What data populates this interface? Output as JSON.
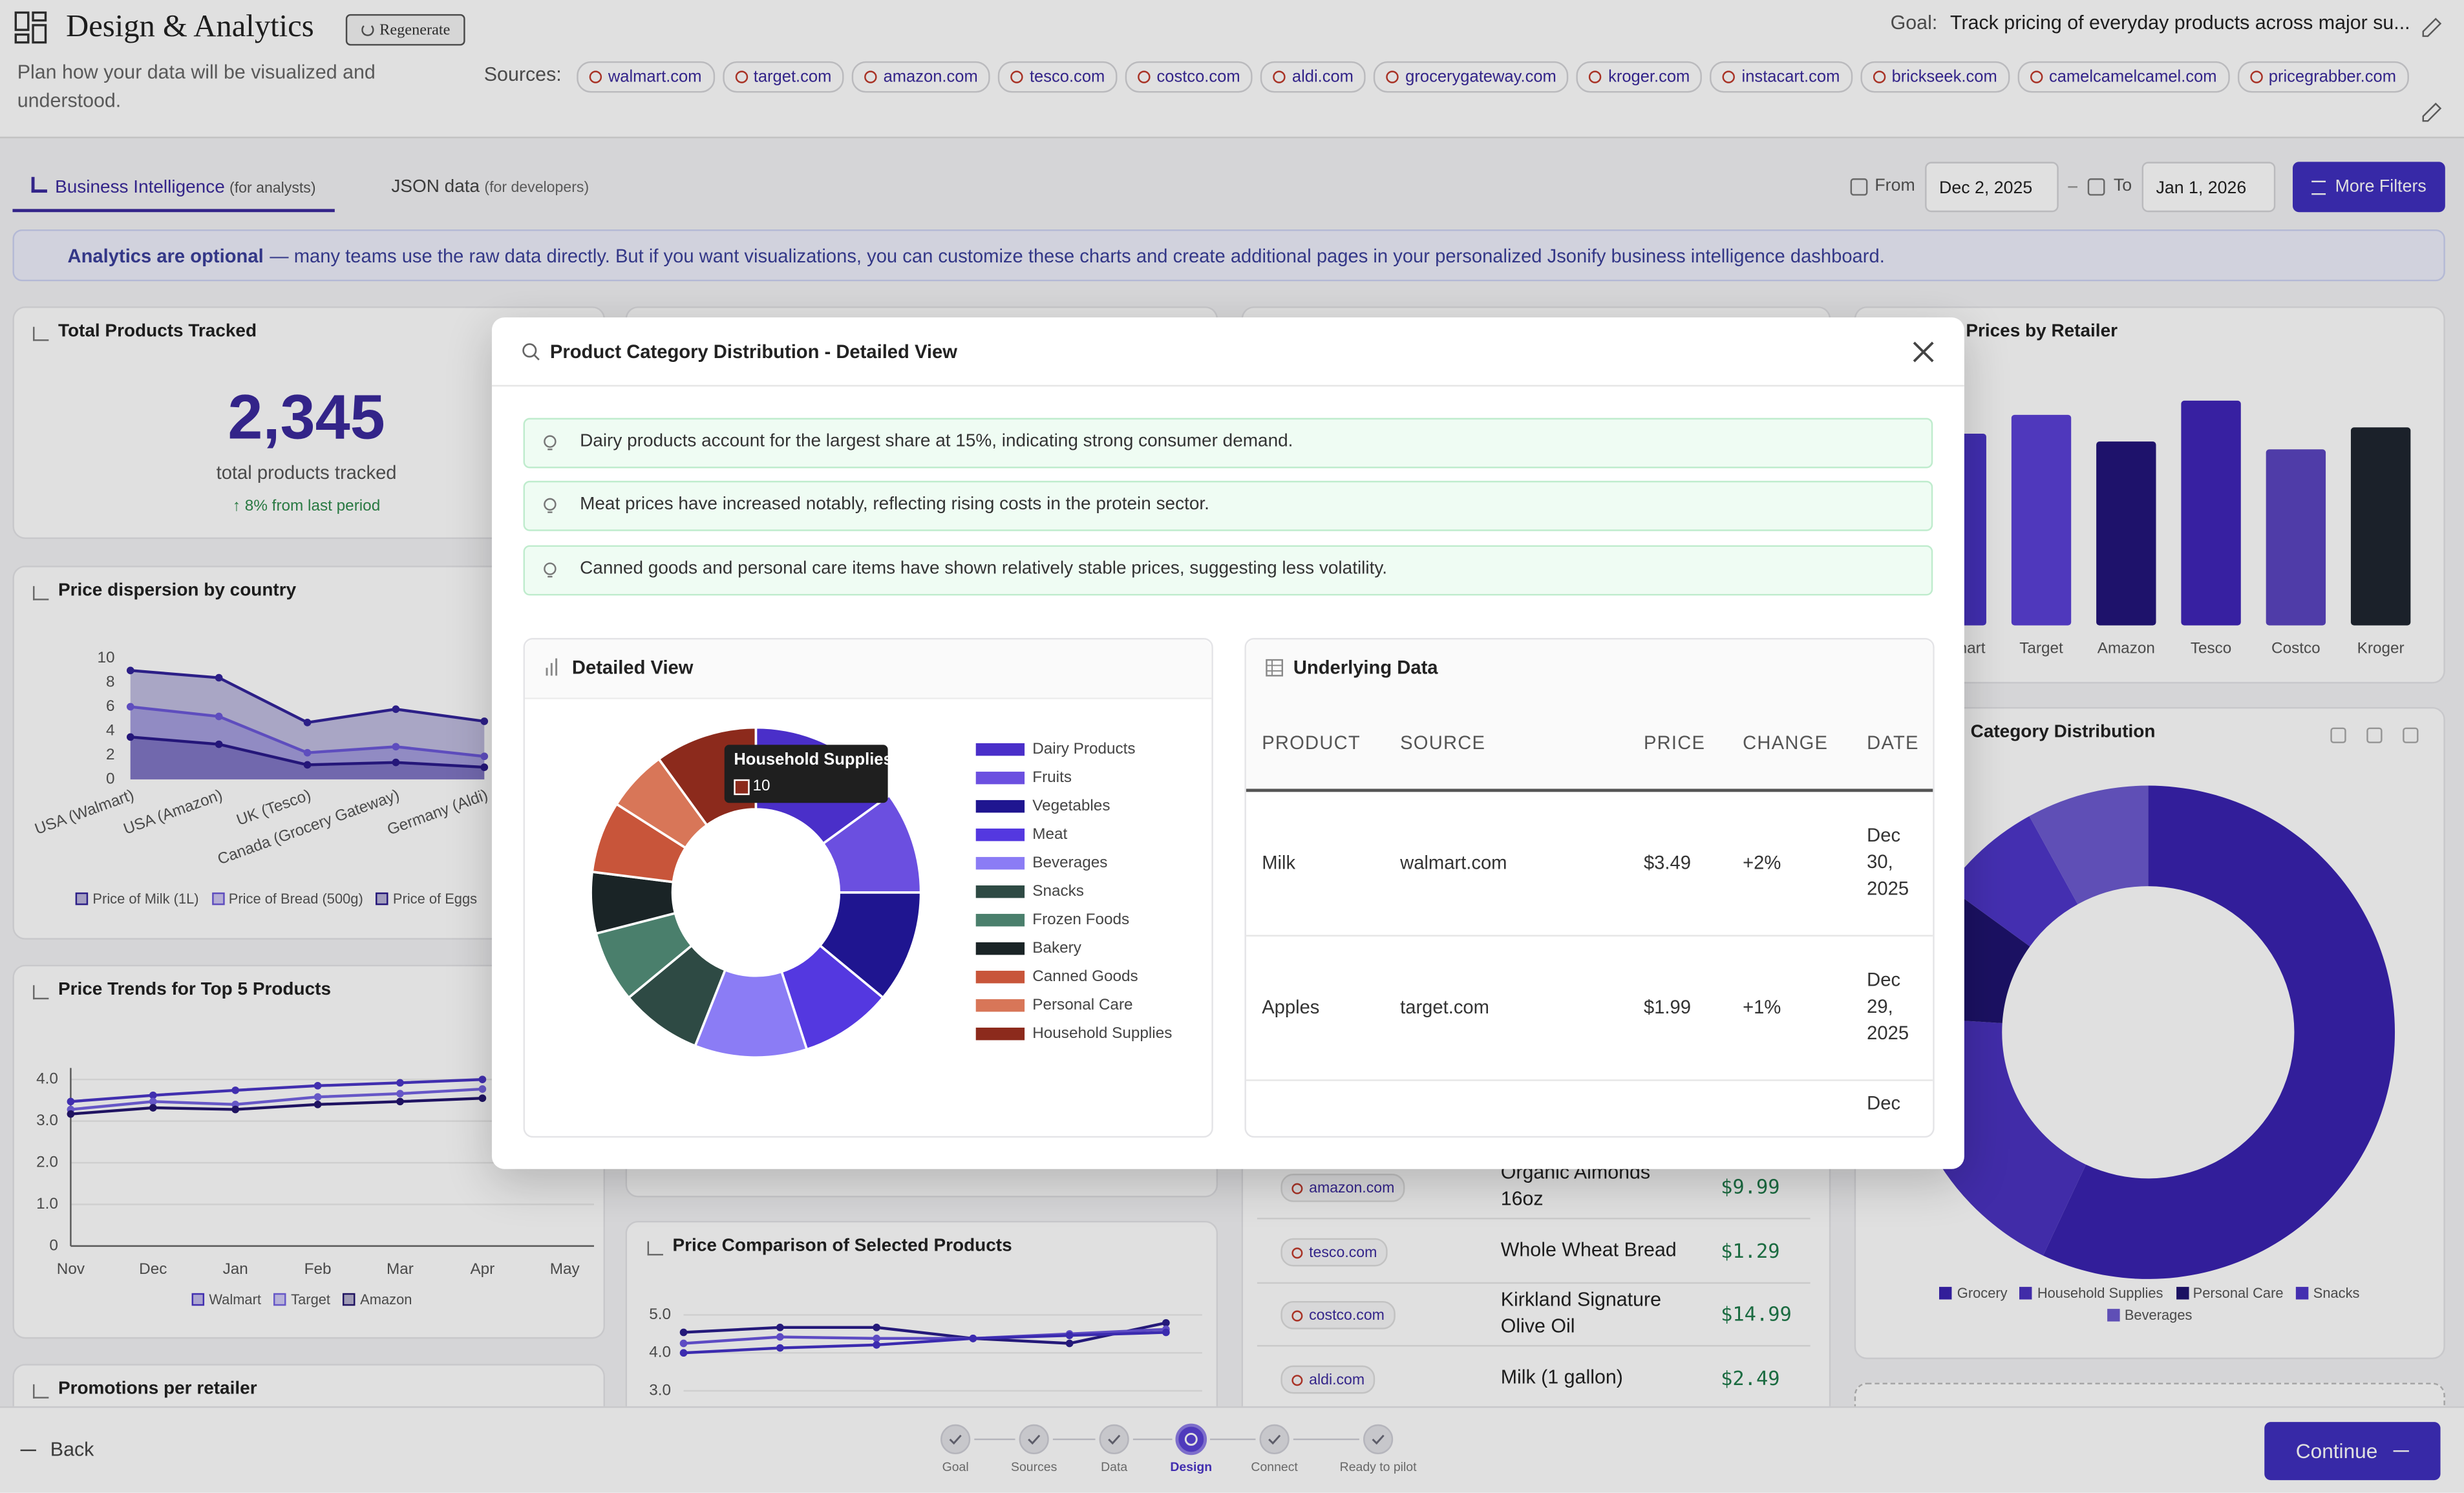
{
  "header": {
    "title": "Design & Analytics",
    "regenerate": "Regenerate",
    "subtitle": "Plan how your data will be visualized and understood.",
    "goal_label": "Goal:",
    "goal": "Track pricing of everyday products across major su...",
    "sources_label": "Sources:",
    "sources": [
      "walmart.com",
      "target.com",
      "amazon.com",
      "tesco.com",
      "costco.com",
      "aldi.com",
      "grocerygateway.com",
      "kroger.com",
      "instacart.com",
      "brickseek.com",
      "camelcamelcamel.com",
      "pricegrabber.com"
    ]
  },
  "tabs": [
    {
      "label": "Business Intelligence",
      "note": "(for analysts)"
    },
    {
      "label": "JSON data",
      "note": "(for developers)"
    }
  ],
  "filters": {
    "from_label": "From",
    "from": "Dec 2, 2025",
    "to_label": "To",
    "to": "Jan 1, 2026",
    "more_filters": "More Filters"
  },
  "banner": {
    "lead": "Analytics are optional",
    "text": "— many teams use the raw data directly. But if you want visualizations, you can customize these charts and create additional pages in your personalized Jsonify business intelligence dashboard."
  },
  "cards": {
    "total_products": {
      "title": "Total Products Tracked",
      "value": "2,345",
      "caption": "total products tracked",
      "change": "↑ 8% from last period"
    },
    "price_dispersion": {
      "title": "Price dispersion by country",
      "chart": {
        "type": "area",
        "categories": [
          "USA (Walmart)",
          "USA (Amazon)",
          "UK (Tesco)",
          "Canada (Grocery Gateway)",
          "Germany (Aldi)"
        ],
        "series": [
          {
            "name": "Price of Milk (1L)",
            "color": "#33249a",
            "values": [
              9,
              8.4,
              4.7,
              5.8,
              4.8
            ]
          },
          {
            "name": "Price of Bread (500g)",
            "color": "#6b58d9",
            "values": [
              6,
              5.2,
              2.2,
              2.7,
              1.9
            ]
          },
          {
            "name": "Price of Eggs",
            "color": "#2a1a8a",
            "values": [
              3.5,
              2.9,
              1.2,
              1.4,
              1
            ]
          }
        ],
        "ylim": [
          0,
          10
        ],
        "yticks": [
          0,
          2,
          4,
          6,
          8,
          10
        ],
        "grid": false
      }
    },
    "price_trends": {
      "title": "Price Trends for Top 5 Products",
      "chart": {
        "type": "line",
        "categories": [
          "Nov",
          "Dec",
          "Jan",
          "Feb",
          "Mar",
          "Apr",
          "May"
        ],
        "series": [
          {
            "name": "Walmart",
            "color": "#4a36c8",
            "values": [
              3.47,
              3.62,
              3.74,
              3.85,
              3.92,
              4,
              null
            ]
          },
          {
            "name": "Target",
            "color": "#7563e3",
            "values": [
              3.28,
              3.47,
              3.4,
              3.58,
              3.66,
              3.77,
              null
            ]
          },
          {
            "name": "Amazon",
            "color": "#24166f",
            "values": [
              3.17,
              3.32,
              3.28,
              3.4,
              3.47,
              3.55,
              null
            ]
          }
        ],
        "ylim": [
          0,
          4.2
        ],
        "yticks": [
          0,
          {
            "value": 1,
            "label": "1.0"
          },
          {
            "value": 2,
            "label": "2.0"
          },
          {
            "value": 3,
            "label": "3.0"
          },
          {
            "value": 4,
            "label": "4.0"
          }
        ],
        "grid": true
      }
    },
    "promotions": {
      "title": "Promotions per retailer"
    },
    "price_comparison": {
      "title": "Price Comparison of Selected Products",
      "chart": {
        "type": "line",
        "categories": [
          null,
          null,
          null,
          null,
          null,
          null
        ],
        "series": [
          {
            "color": "#2a1d8a",
            "values": [
              4.54,
              4.67,
              4.67,
              4.38,
              4.25,
              4.79
            ]
          },
          {
            "color": "#6a56de",
            "values": [
              4.25,
              4.42,
              4.38,
              4.38,
              4.5,
              4.62
            ]
          },
          {
            "color": "#4431c8",
            "values": [
              4,
              4.13,
              4.21,
              4.38,
              4.46,
              4.54
            ]
          }
        ],
        "ylim": [
          2.8,
          5.2
        ],
        "yticks": [
          {
            "value": 3,
            "label": "3.0"
          },
          {
            "value": 4,
            "label": "4.0"
          },
          {
            "value": 5,
            "label": "5.0"
          }
        ],
        "grid": true
      }
    },
    "listings": {
      "rows": [
        {
          "source": "amazon.com",
          "product": "Organic Almonds 16oz",
          "price": "$9.99"
        },
        {
          "source": "tesco.com",
          "product": "Whole Wheat Bread",
          "price": "$1.29"
        },
        {
          "source": "costco.com",
          "product": "Kirkland Signature Olive Oil",
          "price": "$14.99"
        },
        {
          "source": "aldi.com",
          "product": "Milk (1 gallon)",
          "price": "$2.49"
        }
      ]
    },
    "prices_by_retailer": {
      "title": "Prices by Retailer",
      "chart": {
        "type": "bar",
        "categories": [
          "Walmart",
          "Target",
          "Amazon",
          "Tesco",
          "Costco",
          "Kroger"
        ],
        "values": [
          122,
          134,
          117,
          143,
          112,
          126
        ],
        "colors": [
          "#4a35c8",
          "#5b40d6",
          "#23157a",
          "#3f25b8",
          "#5a45c0",
          "#1f2630"
        ],
        "ylim": [
          0,
          150
        ]
      }
    },
    "category_distribution": {
      "title": "Category Distribution",
      "chart": {
        "type": "pie",
        "categories": [
          "Grocery",
          "Household Supplies",
          "Personal Care",
          "Snacks",
          "Beverages"
        ],
        "values": [
          57,
          19,
          9,
          7,
          8
        ],
        "colors": [
          "#3a23b0",
          "#4b33c0",
          "#1f1470",
          "#4e36c9",
          "#6d5bd0"
        ]
      }
    }
  },
  "modal": {
    "title": "Product Category Distribution - Detailed View",
    "insights": [
      "Dairy products account for the largest share at 15%, indicating strong consumer demand.",
      "Meat prices have increased notably, reflecting rising costs in the protein sector.",
      "Canned goods and personal care items have shown relatively stable prices, suggesting less volatility."
    ],
    "detail": {
      "title": "Detailed View",
      "chart": {
        "type": "pie",
        "categories": [
          "Dairy Products",
          "Fruits",
          "Vegetables",
          "Meat",
          "Beverages",
          "Snacks",
          "Frozen Foods",
          "Bakery",
          "Canned Goods",
          "Personal Care",
          "Household Supplies"
        ],
        "values": [
          15,
          10,
          11,
          9,
          11,
          8,
          7,
          6,
          7,
          6,
          10
        ],
        "colors": [
          "#4a2fc9",
          "#6b4fe0",
          "#1f1590",
          "#5438e0",
          "#8b7cf5",
          "#2e4a44",
          "#4a7f6c",
          "#1a2426",
          "#c8553a",
          "#d87658",
          "#8c2a1c"
        ]
      },
      "tooltip_index": 10
    },
    "table": {
      "title": "Underlying Data",
      "headers": [
        "PRODUCT",
        "SOURCE",
        "PRICE",
        "CHANGE",
        "DATE"
      ],
      "rows": [
        [
          "Milk",
          "walmart.com",
          "$3.49",
          "+2%",
          "Dec 30, 2025"
        ],
        [
          "Apples",
          "target.com",
          "$1.99",
          "+1%",
          "Dec 29, 2025"
        ],
        [
          null,
          null,
          null,
          null,
          "Dec"
        ]
      ]
    }
  },
  "footer": {
    "back": "Back",
    "steps": [
      "Goal",
      "Sources",
      "Data",
      "Design",
      "Connect",
      "Ready to pilot"
    ],
    "current_step": 3,
    "continue": "Continue"
  }
}
